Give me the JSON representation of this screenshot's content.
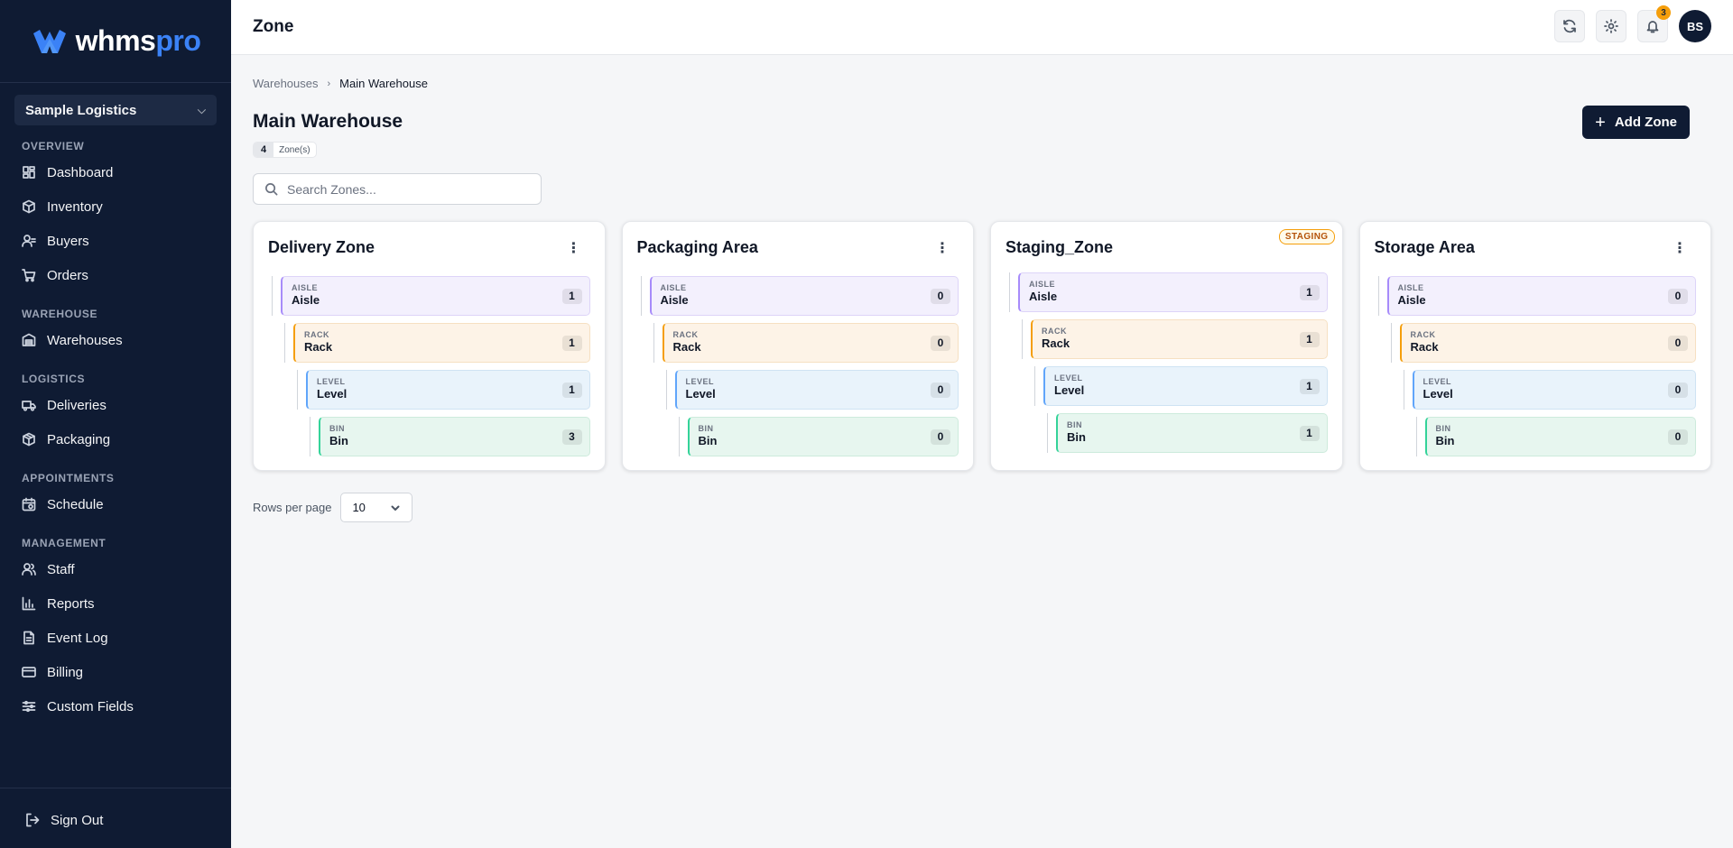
{
  "brand": {
    "name_part1": "whms",
    "name_part2": "pro",
    "accent": "#3b82f6"
  },
  "org_select": {
    "value": "Sample Logistics"
  },
  "sidebar": {
    "sections": [
      {
        "title": "OVERVIEW",
        "items": [
          {
            "label": "Dashboard",
            "icon": "dashboard-icon"
          },
          {
            "label": "Inventory",
            "icon": "box-icon"
          },
          {
            "label": "Buyers",
            "icon": "user-icon"
          },
          {
            "label": "Orders",
            "icon": "cart-icon"
          }
        ]
      },
      {
        "title": "WAREHOUSE",
        "items": [
          {
            "label": "Warehouses",
            "icon": "warehouse-icon"
          }
        ]
      },
      {
        "title": "LOGISTICS",
        "items": [
          {
            "label": "Deliveries",
            "icon": "truck-icon"
          },
          {
            "label": "Packaging",
            "icon": "package-icon"
          }
        ]
      },
      {
        "title": "APPOINTMENTS",
        "items": [
          {
            "label": "Schedule",
            "icon": "calendar-icon"
          }
        ]
      },
      {
        "title": "MANAGEMENT",
        "items": [
          {
            "label": "Staff",
            "icon": "users-icon"
          },
          {
            "label": "Reports",
            "icon": "chart-icon"
          },
          {
            "label": "Event Log",
            "icon": "document-icon"
          },
          {
            "label": "Billing",
            "icon": "credit-card-icon"
          },
          {
            "label": "Custom Fields",
            "icon": "sliders-icon"
          }
        ]
      }
    ],
    "sign_out": "Sign Out"
  },
  "header": {
    "title": "Zone",
    "notification_count": "3",
    "avatar_initials": "BS"
  },
  "breadcrumb": {
    "parent": "Warehouses",
    "current": "Main Warehouse"
  },
  "page": {
    "title": "Main Warehouse",
    "zone_count": "4",
    "zone_count_label": "Zone(s)",
    "add_button": "Add Zone"
  },
  "search": {
    "placeholder": "Search Zones..."
  },
  "zones": [
    {
      "name": "Delivery Zone",
      "badge": "",
      "nodes": [
        {
          "type": "AISLE",
          "name": "Aisle",
          "count": "1"
        },
        {
          "type": "RACK",
          "name": "Rack",
          "count": "1"
        },
        {
          "type": "LEVEL",
          "name": "Level",
          "count": "1"
        },
        {
          "type": "BIN",
          "name": "Bin",
          "count": "3"
        }
      ]
    },
    {
      "name": "Packaging Area",
      "badge": "",
      "nodes": [
        {
          "type": "AISLE",
          "name": "Aisle",
          "count": "0"
        },
        {
          "type": "RACK",
          "name": "Rack",
          "count": "0"
        },
        {
          "type": "LEVEL",
          "name": "Level",
          "count": "0"
        },
        {
          "type": "BIN",
          "name": "Bin",
          "count": "0"
        }
      ]
    },
    {
      "name": "Staging_Zone",
      "badge": "STAGING",
      "nodes": [
        {
          "type": "AISLE",
          "name": "Aisle",
          "count": "1"
        },
        {
          "type": "RACK",
          "name": "Rack",
          "count": "1"
        },
        {
          "type": "LEVEL",
          "name": "Level",
          "count": "1"
        },
        {
          "type": "BIN",
          "name": "Bin",
          "count": "1"
        }
      ]
    },
    {
      "name": "Storage Area",
      "badge": "",
      "nodes": [
        {
          "type": "AISLE",
          "name": "Aisle",
          "count": "0"
        },
        {
          "type": "RACK",
          "name": "Rack",
          "count": "0"
        },
        {
          "type": "LEVEL",
          "name": "Level",
          "count": "0"
        },
        {
          "type": "BIN",
          "name": "Bin",
          "count": "0"
        }
      ]
    }
  ],
  "pagination": {
    "rows_per_page_label": "Rows per page",
    "rows_per_page_value": "10"
  }
}
